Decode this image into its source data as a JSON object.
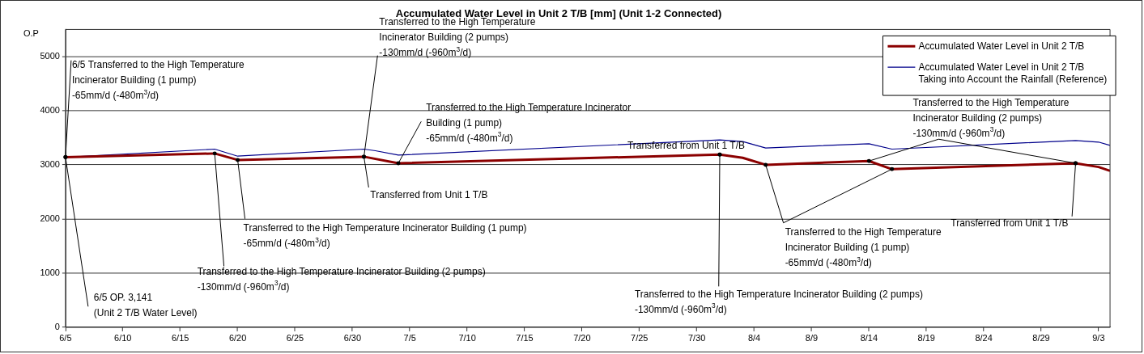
{
  "chart_data": {
    "type": "line",
    "title": "Accumulated Water Level in Unit 2 T/B [mm] (Unit 1-2 Connected)",
    "ylabel": "O.P",
    "series": [
      {
        "name": "Accumulated Water Level in Unit 2 T/B",
        "color": "#8b0000",
        "x": [
          "--06-05",
          "--06-18",
          "--06-20",
          "--07-01",
          "--07-04",
          "--08-01",
          "--08-03",
          "--08-05",
          "--08-14",
          "--08-16",
          "--09-01",
          "--09-03",
          "--09-04"
        ],
        "values": [
          3140,
          3210,
          3090,
          3150,
          3030,
          3190,
          3130,
          3000,
          3070,
          2920,
          3030,
          2960,
          2890
        ]
      },
      {
        "name": "Accumulated Water Level in Unit 2 T/B Taking into Account the Rainfall (Reference)",
        "color": "#00008b",
        "x": [
          "--06-05",
          "--06-18",
          "--06-20",
          "--07-01",
          "--07-02",
          "--07-04",
          "--08-01",
          "--08-03",
          "--08-05",
          "--08-14",
          "--08-16",
          "--09-01",
          "--09-03",
          "--09-04"
        ],
        "values": [
          3140,
          3290,
          3160,
          3290,
          3260,
          3180,
          3460,
          3430,
          3310,
          3390,
          3290,
          3450,
          3420,
          3360
        ]
      }
    ],
    "xlim": [
      "--06-05",
      "--09-04"
    ],
    "xticks": [
      {
        "value": "--06-05",
        "label": "6/5"
      },
      {
        "value": "--06-10",
        "label": "6/10"
      },
      {
        "value": "--06-15",
        "label": "6/15"
      },
      {
        "value": "--06-20",
        "label": "6/20"
      },
      {
        "value": "--06-25",
        "label": "6/25"
      },
      {
        "value": "--06-30",
        "label": "6/30"
      },
      {
        "value": "--07-05",
        "label": "7/5"
      },
      {
        "value": "--07-10",
        "label": "7/10"
      },
      {
        "value": "--07-15",
        "label": "7/15"
      },
      {
        "value": "--07-20",
        "label": "7/20"
      },
      {
        "value": "--07-25",
        "label": "7/25"
      },
      {
        "value": "--07-30",
        "label": "7/30"
      },
      {
        "value": "--08-04",
        "label": "8/4"
      },
      {
        "value": "--08-09",
        "label": "8/9"
      },
      {
        "value": "--08-14",
        "label": "8/14"
      },
      {
        "value": "--08-19",
        "label": "8/19"
      },
      {
        "value": "--08-24",
        "label": "8/24"
      },
      {
        "value": "--08-29",
        "label": "8/29"
      },
      {
        "value": "--09-03",
        "label": "9/3"
      }
    ],
    "ylim": [
      0,
      5500
    ],
    "yticks": [
      0,
      1000,
      2000,
      3000,
      4000,
      5000
    ],
    "grid": "y",
    "legend": "top right",
    "marker": "none",
    "line_style": "solid",
    "annotations": [
      {
        "text": "6/5 Transferred to the High Temperature\nIncinerator Building (1 pump)\n-65mm/d (-480m$^{3}$/d)",
        "x": "--06-05",
        "y": 3140
      },
      {
        "text": "6/5 OP. 3,141\n(Unit 2 T/B Water Level)",
        "x": "--06-05",
        "y": 3140
      },
      {
        "text": "Transferred to the High Temperature Incinerator Building (2 pumps)\n-130mm/d (-960m$^{3}$/d)",
        "x": "--06-18",
        "y": 3210
      },
      {
        "text": "Transferred to the High Temperature Incinerator Building (1 pump)\n-65mm/d (-480m$^{3}$/d)",
        "x": "--06-20",
        "y": 3090
      },
      {
        "text": "Transferred to the High Temperature\nIncinerator Building (2 pumps)\n-130mm/d (-960m$^{3}$/d)",
        "x": "--07-01",
        "y": 3150
      },
      {
        "text": "Transferred from Unit 1 T/B",
        "x": "--07-01",
        "y": 3150
      },
      {
        "text": "Transferred to the High Temperature Incinerator\nBuilding (1 pump)\n-65mm/d (-480m$^{3}$/d)",
        "x": "--07-04",
        "y": 3030
      },
      {
        "text": "Transferred from Unit 1 T/B",
        "x": "--08-01",
        "y": 3190
      },
      {
        "text": "Transferred to the High Temperature Incinerator Building (2 pumps)\n-130mm/d (-960m$^{3}$/d)",
        "x": "--08-01",
        "y": 3190
      },
      {
        "text": "Transferred to the High Temperature\nIncinerator Building (1 pump)\n-65mm/d (-480m$^{3}$/d)",
        "x": "--08-05",
        "y": 3000
      },
      {
        "text": "Transferred to the High Temperature\nIncinerator Building (2 pumps)\n-130mm/d (-960m$^{3}$/d)",
        "x": "--08-14",
        "y": 3070
      },
      {
        "text": "Transferred from Unit 1 T/B",
        "x": "--09-01",
        "y": 3030
      }
    ]
  }
}
